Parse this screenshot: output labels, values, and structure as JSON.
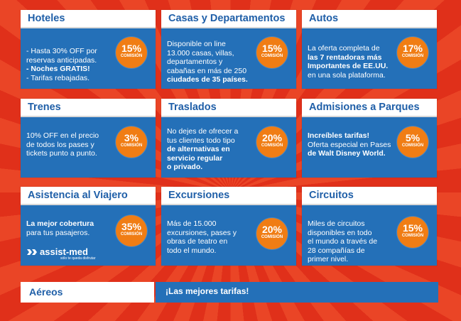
{
  "cards": [
    {
      "title": "Hoteles",
      "lines": [
        "- Hasta 30% OFF por",
        "reservas anticipadas.",
        "- Noches GRATIS!",
        "- Tarifas rebajadas."
      ],
      "badge_pct": "15%",
      "badge_label": "COMISIÓN"
    },
    {
      "title": "Casas y Departamentos",
      "lines": [
        "Disponible on line",
        "13.000 casas, villas,",
        "departamentos y",
        "cabañas en más de 250",
        "ciudades de 35 países."
      ],
      "badge_pct": "15%",
      "badge_label": "COMISIÓN"
    },
    {
      "title": "Autos",
      "lines": [
        "La oferta completa de",
        "las 7 rentadoras más",
        "Importantes de EE.UU.",
        "en una sola plataforma."
      ],
      "badge_pct": "17%",
      "badge_label": "COMISIÓN"
    },
    {
      "title": "Trenes",
      "lines": [
        "10% OFF en el precio",
        "de todos los pases y",
        "tickets punto a punto."
      ],
      "badge_pct": "3%",
      "badge_label": "COMISIÓN"
    },
    {
      "title": "Traslados",
      "lines": [
        "No dejes de ofrecer a",
        "tus clientes todo tipo",
        "de alternativas en",
        "servicio regular",
        "o privado."
      ],
      "badge_pct": "20%",
      "badge_label": "COMISIÓN"
    },
    {
      "title": "Admisiones a Parques",
      "lines": [
        "Increíbles tarifas!",
        "Oferta especial en Pases",
        "de Walt Disney World."
      ],
      "badge_pct": "5%",
      "badge_label": "COMISIÓN"
    },
    {
      "title": "Asistencia al Viajero",
      "lines": [
        "La mejor cobertura",
        "para tus pasajeros."
      ],
      "badge_pct": "35%",
      "badge_label": "COMISIÓN",
      "logo_text": "assist-med",
      "logo_tagline": "sólo te queda disfrutar"
    },
    {
      "title": "Excursiones",
      "lines": [
        "Más de 15.000",
        "excursiones, pases y",
        "obras de teatro en",
        "todo el mundo."
      ],
      "badge_pct": "20%",
      "badge_label": "COMISIÓN"
    },
    {
      "title": "Circuitos",
      "lines": [
        "Miles de circuitos",
        "disponibles en todo",
        "el mundo a través de",
        "28 compañías de",
        "primer nivel."
      ],
      "badge_pct": "15%",
      "badge_label": "COMISIÓN"
    }
  ],
  "aereos": {
    "title": "Aéreos",
    "text": "¡Las mejores tarifas!"
  },
  "colors": {
    "card_blue": "#2470b8",
    "title_blue": "#1f5fa8",
    "badge_orange": "#f07d14",
    "background_red": "#e0301a"
  }
}
